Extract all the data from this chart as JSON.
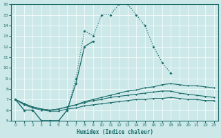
{
  "xlabel": "Humidex (Indice chaleur)",
  "xlim": [
    -0.5,
    23.5
  ],
  "ylim": [
    5,
    16
  ],
  "yticks": [
    5,
    6,
    7,
    8,
    9,
    10,
    11,
    12,
    13,
    14,
    15,
    16
  ],
  "xticks": [
    0,
    1,
    2,
    3,
    4,
    5,
    6,
    7,
    8,
    9,
    10,
    11,
    12,
    13,
    14,
    15,
    16,
    17,
    18,
    19,
    20,
    21,
    22,
    23
  ],
  "bg_color": "#cce8e8",
  "line_color": "#1a6b6b",
  "grid_color": "#ffffff",
  "curve1_x": [
    0,
    1,
    2,
    3,
    4,
    5,
    6,
    7,
    8,
    9,
    10,
    11,
    12,
    13,
    14,
    15,
    16,
    17,
    18
  ],
  "curve1_y": [
    7,
    6,
    6,
    5,
    5,
    5,
    6,
    9,
    13.5,
    13,
    15,
    15,
    16,
    16,
    15,
    14,
    12,
    10.5,
    9.5
  ],
  "curve2_x": [
    0,
    1,
    2,
    3,
    4,
    5,
    6,
    7,
    8,
    9
  ],
  "curve2_y": [
    7,
    6,
    6,
    5,
    5,
    5,
    6,
    8.5,
    12,
    12.5
  ],
  "curve3_x": [
    0,
    1,
    2,
    3,
    4,
    5,
    6,
    7,
    8,
    9,
    10,
    11,
    12,
    13,
    14,
    15,
    16,
    17,
    18,
    19,
    20,
    21,
    22,
    23
  ],
  "curve3_y": [
    7,
    6.6,
    6.3,
    6.1,
    6.0,
    6.1,
    6.3,
    6.5,
    6.8,
    7.0,
    7.2,
    7.4,
    7.6,
    7.8,
    7.9,
    8.1,
    8.2,
    8.4,
    8.5,
    8.4,
    8.3,
    8.3,
    8.2,
    8.1
  ],
  "curve4_x": [
    0,
    1,
    2,
    3,
    4,
    5,
    6,
    7,
    8,
    9,
    10,
    11,
    12,
    13,
    14,
    15,
    16,
    17,
    18,
    19,
    20,
    21,
    22,
    23
  ],
  "curve4_y": [
    7,
    6.6,
    6.3,
    6.1,
    6.0,
    6.1,
    6.3,
    6.5,
    6.7,
    6.9,
    7.0,
    7.2,
    7.3,
    7.4,
    7.5,
    7.6,
    7.7,
    7.8,
    7.8,
    7.6,
    7.5,
    7.4,
    7.3,
    7.2
  ],
  "curve5_x": [
    0,
    1,
    2,
    3,
    4,
    5,
    6,
    7,
    8,
    9,
    10,
    11,
    12,
    13,
    14,
    15,
    16,
    17,
    18,
    19,
    20,
    21,
    22,
    23
  ],
  "curve5_y": [
    7,
    6.5,
    6.2,
    6.0,
    5.9,
    5.9,
    6.1,
    6.2,
    6.4,
    6.5,
    6.6,
    6.7,
    6.8,
    6.9,
    7.0,
    7.0,
    7.1,
    7.1,
    7.2,
    7.1,
    7.0,
    7.0,
    6.9,
    6.9
  ]
}
